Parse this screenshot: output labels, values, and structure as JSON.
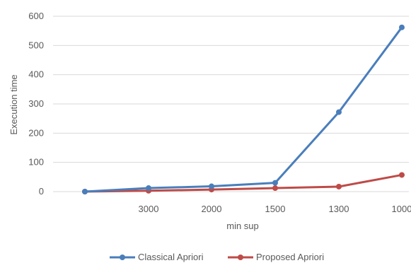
{
  "chart_data": {
    "type": "line",
    "categories": [
      "",
      "3000",
      "2000",
      "1500",
      "1300",
      "1000"
    ],
    "series": [
      {
        "name": "Classical Apriori",
        "color": "#4a7ebb",
        "values": [
          0,
          12,
          18,
          30,
          272,
          562
        ]
      },
      {
        "name": "Proposed Apriori",
        "color": "#be4b48",
        "values": [
          0,
          3,
          7,
          12,
          17,
          57
        ]
      }
    ],
    "xlabel": "min sup",
    "ylabel": "Execution time",
    "ylim": [
      0,
      600
    ],
    "yticks": [
      "0",
      "100",
      "200",
      "300",
      "400",
      "500",
      "600"
    ],
    "grid": "horizontal",
    "legend": "bottom"
  }
}
